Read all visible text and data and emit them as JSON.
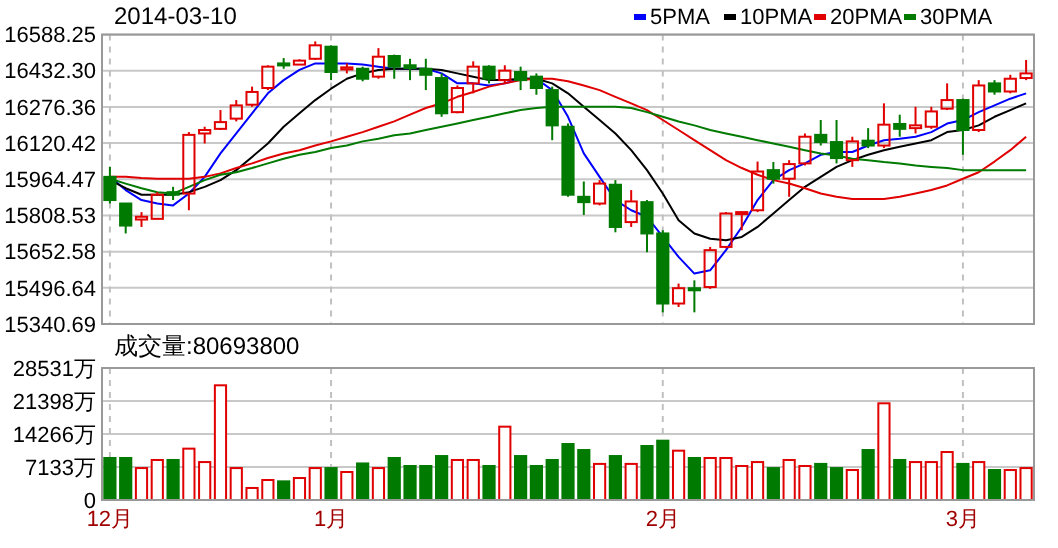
{
  "chart_data": [
    {
      "type": "candlestick",
      "title": "2014-03-10",
      "legend": "top right",
      "grid": true,
      "tick_labels": "y",
      "categories": [
        null,
        null,
        null,
        null,
        null,
        null,
        null,
        null,
        null,
        null,
        null,
        null,
        null,
        null,
        null,
        null,
        null,
        null,
        null,
        null,
        null,
        null,
        null,
        null,
        null,
        null,
        null,
        null,
        null,
        null,
        null,
        null,
        null,
        null,
        null,
        null,
        null,
        null,
        null,
        null,
        null,
        null,
        null,
        null,
        null,
        null,
        null,
        null,
        null,
        null,
        null,
        null,
        null,
        null,
        null,
        null,
        null,
        null,
        null
      ],
      "ylim": [
        15340.69,
        16588.25
      ],
      "yticks": [
        16588.25,
        {
          "value": 16432.3,
          "label": "16432.30"
        },
        16276.36,
        16120.42,
        15964.47,
        15808.53,
        15652.58,
        15496.64,
        15340.69
      ],
      "colors": [
        "#007a00",
        "#007a00",
        "#e00000",
        "#e00000",
        "#007a00",
        "#e00000",
        "#e00000",
        "#e00000",
        "#e00000",
        "#e00000",
        "#e00000",
        "#007a00",
        "#e00000",
        "#e00000",
        "#007a00",
        "#e00000",
        "#007a00",
        "#e00000",
        "#007a00",
        "#007a00",
        "#007a00",
        "#007a00",
        "#e00000",
        "#e00000",
        "#007a00",
        "#e00000",
        "#007a00",
        "#007a00",
        "#007a00",
        "#007a00",
        "#007a00",
        "#e00000",
        "#007a00",
        "#e00000",
        "#007a00",
        "#007a00",
        "#e00000",
        "#007a00",
        "#e00000",
        "#e00000",
        "#e00000",
        "#e00000",
        "#007a00",
        "#e00000",
        "#e00000",
        "#007a00",
        "#007a00",
        "#e00000",
        "#007a00",
        "#e00000",
        "#007a00",
        "#e00000",
        "#e00000",
        "#e00000",
        "#007a00",
        "#e00000",
        "#007a00",
        "#e00000",
        "#e00000"
      ],
      "ohlc": [
        [
          15975,
          16018,
          15860,
          15875
        ],
        [
          15860,
          15860,
          15731,
          15765
        ],
        [
          15791,
          15823,
          15759,
          15803
        ],
        [
          15794,
          15909,
          15794,
          15898
        ],
        [
          15909,
          15932,
          15875,
          15898
        ],
        [
          15903,
          16168,
          15831,
          16156
        ],
        [
          16162,
          16191,
          16119,
          16177
        ],
        [
          16182,
          16263,
          16177,
          16211
        ],
        [
          16226,
          16306,
          16214,
          16283
        ],
        [
          16286,
          16364,
          16277,
          16341
        ],
        [
          16358,
          16456,
          16349,
          16450
        ],
        [
          16464,
          16487,
          16441,
          16461
        ],
        [
          16459,
          16482,
          16456,
          16476
        ],
        [
          16484,
          16559,
          16479,
          16542
        ],
        [
          16536,
          16542,
          16392,
          16427
        ],
        [
          16438,
          16464,
          16421,
          16447
        ],
        [
          16441,
          16450,
          16387,
          16398
        ],
        [
          16407,
          16530,
          16398,
          16493
        ],
        [
          16496,
          16502,
          16398,
          16450
        ],
        [
          16456,
          16484,
          16392,
          16444
        ],
        [
          16441,
          16484,
          16349,
          16415
        ],
        [
          16401,
          16421,
          16234,
          16249
        ],
        [
          16254,
          16369,
          16249,
          16358
        ],
        [
          16378,
          16473,
          16335,
          16450
        ],
        [
          16450,
          16456,
          16378,
          16398
        ],
        [
          16392,
          16456,
          16378,
          16433
        ],
        [
          16427,
          16450,
          16349,
          16392
        ],
        [
          16407,
          16421,
          16329,
          16358
        ],
        [
          16349,
          16364,
          16133,
          16197
        ],
        [
          16191,
          16205,
          15889,
          15898
        ],
        [
          15889,
          15955,
          15811,
          15866
        ],
        [
          15860,
          15961,
          15852,
          15946
        ],
        [
          15941,
          15961,
          15736,
          15759
        ],
        [
          15780,
          15918,
          15759,
          15869
        ],
        [
          15866,
          15875,
          15650,
          15731
        ],
        [
          15731,
          15745,
          15391,
          15429
        ],
        [
          15429,
          15515,
          15414,
          15495
        ],
        [
          15495,
          15529,
          15391,
          15486
        ],
        [
          15500,
          15673,
          15492,
          15659
        ],
        [
          15673,
          15823,
          15667,
          15817
        ],
        [
          15817,
          15826,
          15745,
          15823
        ],
        [
          15831,
          16041,
          15823,
          15998
        ],
        [
          16004,
          16039,
          15946,
          15967
        ],
        [
          15967,
          16047,
          15889,
          16030
        ],
        [
          16033,
          16162,
          16024,
          16148
        ],
        [
          16156,
          16220,
          16110,
          16125
        ],
        [
          16125,
          16220,
          16033,
          16056
        ],
        [
          16047,
          16148,
          16018,
          16128
        ],
        [
          16131,
          16185,
          16099,
          16110
        ],
        [
          16110,
          16292,
          16099,
          16200
        ],
        [
          16203,
          16243,
          16148,
          16182
        ],
        [
          16185,
          16277,
          16162,
          16197
        ],
        [
          16191,
          16277,
          16182,
          16257
        ],
        [
          16269,
          16378,
          16263,
          16306
        ],
        [
          16306,
          16312,
          16070,
          16177
        ],
        [
          16177,
          16392,
          16168,
          16369
        ],
        [
          16378,
          16392,
          16329,
          16343
        ],
        [
          16343,
          16415,
          16335,
          16398
        ],
        [
          16401,
          16479,
          16392,
          16421
        ]
      ],
      "series": [
        {
          "type": "line",
          "name": "5PMA",
          "color": "#0000ff",
          "values": [
            15975,
            15918,
            15875,
            15860,
            15852,
            15903,
            15975,
            16076,
            16162,
            16249,
            16335,
            16392,
            16436,
            16464,
            16464,
            16464,
            16459,
            16450,
            16441,
            16441,
            16441,
            16421,
            16378,
            16378,
            16369,
            16378,
            16398,
            16398,
            16349,
            16234,
            16076,
            15975,
            15875,
            15831,
            15803,
            15716,
            15630,
            15558,
            15572,
            15659,
            15759,
            15875,
            15961,
            16004,
            16033,
            16070,
            16082,
            16082,
            16110,
            16133,
            16139,
            16148,
            16168,
            16205,
            16220,
            16254,
            16283,
            16312,
            16335
          ]
        },
        {
          "type": "line",
          "name": "10PMA",
          "color": "#000000",
          "values": [
            15961,
            15926,
            15898,
            15898,
            15898,
            15909,
            15932,
            15961,
            16004,
            16061,
            16119,
            16191,
            16249,
            16306,
            16355,
            16398,
            16421,
            16436,
            16441,
            16441,
            16441,
            16436,
            16421,
            16407,
            16392,
            16392,
            16398,
            16398,
            16378,
            16335,
            16277,
            16220,
            16162,
            16090,
            16004,
            15903,
            15788,
            15731,
            15708,
            15702,
            15716,
            15759,
            15817,
            15875,
            15932,
            15975,
            16018,
            16047,
            16070,
            16090,
            16105,
            16119,
            16133,
            16168,
            16177,
            16197,
            16234,
            16263,
            16292
          ]
        },
        {
          "type": "line",
          "name": "20PMA",
          "color": "#e00000",
          "values": [
            15975,
            15975,
            15970,
            15967,
            15967,
            15967,
            15975,
            15990,
            16013,
            16033,
            16056,
            16076,
            16090,
            16110,
            16128,
            16148,
            16168,
            16191,
            16214,
            16243,
            16272,
            16292,
            16320,
            16341,
            16364,
            16378,
            16392,
            16398,
            16398,
            16387,
            16369,
            16349,
            16320,
            16292,
            16263,
            16220,
            16177,
            16133,
            16090,
            16047,
            16013,
            15984,
            15961,
            15946,
            15926,
            15903,
            15889,
            15880,
            15880,
            15880,
            15889,
            15903,
            15918,
            15938,
            15967,
            15995,
            16041,
            16090,
            16148
          ]
        },
        {
          "type": "line",
          "name": "30PMA",
          "color": "#007a00",
          "values": [
            15967,
            15946,
            15926,
            15909,
            15903,
            15932,
            15961,
            15984,
            15995,
            16013,
            16033,
            16053,
            16070,
            16082,
            16099,
            16110,
            16128,
            16139,
            16154,
            16162,
            16177,
            16191,
            16205,
            16220,
            16234,
            16249,
            16263,
            16272,
            16277,
            16277,
            16277,
            16277,
            16277,
            16272,
            16254,
            16234,
            16214,
            16197,
            16177,
            16162,
            16148,
            16133,
            16119,
            16105,
            16090,
            16076,
            16067,
            16053,
            16047,
            16039,
            16033,
            16024,
            16018,
            16013,
            16004,
            16004,
            16004,
            16004,
            16004
          ]
        }
      ]
    },
    {
      "type": "bar",
      "title": "成交量:80693800",
      "grid": true,
      "categories": [
        "12月",
        null,
        null,
        null,
        null,
        null,
        null,
        null,
        null,
        null,
        null,
        null,
        null,
        null,
        "1月",
        null,
        null,
        null,
        null,
        null,
        null,
        null,
        null,
        null,
        null,
        null,
        null,
        null,
        null,
        null,
        null,
        null,
        null,
        null,
        null,
        "2月",
        null,
        null,
        null,
        null,
        null,
        null,
        null,
        null,
        null,
        null,
        null,
        null,
        null,
        null,
        null,
        null,
        null,
        null,
        "3月",
        null,
        null,
        null,
        null
      ],
      "ylim": [
        0,
        28531
      ],
      "yticks": [
        0,
        {
          "value": 7133,
          "label": "7133万"
        },
        {
          "value": 14266,
          "label": "14266万"
        },
        {
          "value": 21398,
          "label": "21398万"
        },
        {
          "value": 28531,
          "label": "28531万"
        }
      ],
      "values": [
        9080,
        9080,
        6900,
        8650,
        8650,
        11100,
        8200,
        24790,
        6900,
        2600,
        4320,
        4030,
        4750,
        6900,
        6900,
        6050,
        7900,
        6900,
        9080,
        7350,
        7350,
        9500,
        8650,
        8650,
        7350,
        15850,
        9500,
        7350,
        8650,
        12100,
        10800,
        7800,
        9500,
        7800,
        11670,
        12820,
        10660,
        9080,
        9080,
        9080,
        7350,
        8200,
        6900,
        8650,
        7350,
        7800,
        6900,
        6480,
        10800,
        20900,
        8650,
        8200,
        8200,
        10370,
        7800,
        8200,
        6480,
        6480,
        6900
      ],
      "colors": [
        "#007a00",
        "#007a00",
        "#e00000",
        "#e00000",
        "#007a00",
        "#e00000",
        "#e00000",
        "#e00000",
        "#e00000",
        "#e00000",
        "#e00000",
        "#007a00",
        "#e00000",
        "#e00000",
        "#007a00",
        "#e00000",
        "#007a00",
        "#e00000",
        "#007a00",
        "#007a00",
        "#007a00",
        "#007a00",
        "#e00000",
        "#e00000",
        "#007a00",
        "#e00000",
        "#007a00",
        "#007a00",
        "#007a00",
        "#007a00",
        "#007a00",
        "#e00000",
        "#007a00",
        "#e00000",
        "#007a00",
        "#007a00",
        "#e00000",
        "#007a00",
        "#e00000",
        "#e00000",
        "#e00000",
        "#e00000",
        "#007a00",
        "#e00000",
        "#e00000",
        "#007a00",
        "#007a00",
        "#e00000",
        "#007a00",
        "#e00000",
        "#007a00",
        "#e00000",
        "#e00000",
        "#e00000",
        "#007a00",
        "#e00000",
        "#007a00",
        "#e00000",
        "#e00000"
      ]
    }
  ]
}
